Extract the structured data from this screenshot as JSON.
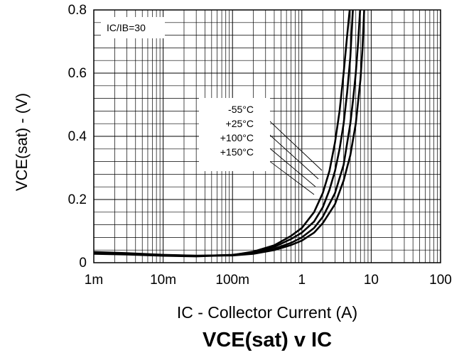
{
  "chart_data": {
    "type": "line",
    "title_main": "VCE(sat)",
    "title_sub": " v ",
    "title_end": "IC",
    "xlabel_prefix": "IC",
    "xlabel_rest": " - Collector Current (A)",
    "ylabel_main": "VCE(sat)",
    "ylabel_rest": " - (V)",
    "condition": "IC/IB=30",
    "x_scale": "log",
    "xlim": [
      0.001,
      100
    ],
    "ylim": [
      0,
      0.8
    ],
    "grid": true,
    "x_ticks": [
      {
        "value": 0.001,
        "label": "1m"
      },
      {
        "value": 0.01,
        "label": "10m"
      },
      {
        "value": 0.1,
        "label": "100m"
      },
      {
        "value": 1,
        "label": "1"
      },
      {
        "value": 10,
        "label": "10"
      },
      {
        "value": 100,
        "label": "100"
      }
    ],
    "y_ticks": [
      {
        "value": 0,
        "label": "0"
      },
      {
        "value": 0.2,
        "label": "0.2"
      },
      {
        "value": 0.4,
        "label": "0.4"
      },
      {
        "value": 0.6,
        "label": "0.6"
      },
      {
        "value": 0.8,
        "label": "0.8"
      }
    ],
    "series": [
      {
        "name": "-55°C",
        "x": [
          0.001,
          0.003,
          0.01,
          0.03,
          0.1,
          0.2,
          0.4,
          0.7,
          1.0,
          1.5,
          2.0,
          2.5,
          3.0,
          3.5,
          4.0,
          4.5,
          5.0
        ],
        "y": [
          0.028,
          0.026,
          0.022,
          0.02,
          0.024,
          0.035,
          0.055,
          0.085,
          0.11,
          0.16,
          0.22,
          0.29,
          0.38,
          0.48,
          0.6,
          0.72,
          0.82
        ]
      },
      {
        "name": "+25°C",
        "x": [
          0.001,
          0.003,
          0.01,
          0.03,
          0.1,
          0.2,
          0.4,
          0.7,
          1.0,
          1.5,
          2.0,
          2.5,
          3.0,
          3.5,
          4.0,
          4.5,
          5.0,
          5.5
        ],
        "y": [
          0.03,
          0.027,
          0.023,
          0.021,
          0.025,
          0.033,
          0.05,
          0.075,
          0.095,
          0.13,
          0.175,
          0.23,
          0.29,
          0.36,
          0.44,
          0.54,
          0.65,
          0.82
        ]
      },
      {
        "name": "+100°C",
        "x": [
          0.001,
          0.003,
          0.01,
          0.03,
          0.1,
          0.2,
          0.4,
          0.7,
          1.0,
          1.5,
          2.0,
          3.0,
          4.0,
          5.0,
          5.5,
          6.0,
          6.5,
          7.0
        ],
        "y": [
          0.032,
          0.028,
          0.024,
          0.022,
          0.024,
          0.03,
          0.044,
          0.063,
          0.08,
          0.11,
          0.145,
          0.22,
          0.31,
          0.44,
          0.52,
          0.6,
          0.7,
          0.82
        ]
      },
      {
        "name": "+150°C",
        "x": [
          0.001,
          0.003,
          0.01,
          0.03,
          0.1,
          0.2,
          0.4,
          0.7,
          1.0,
          1.5,
          2.0,
          3.0,
          4.0,
          5.0,
          6.0,
          7.0,
          7.5,
          8.0
        ],
        "y": [
          0.034,
          0.03,
          0.025,
          0.022,
          0.023,
          0.028,
          0.04,
          0.056,
          0.07,
          0.095,
          0.125,
          0.185,
          0.26,
          0.34,
          0.44,
          0.58,
          0.68,
          0.82
        ]
      }
    ]
  }
}
